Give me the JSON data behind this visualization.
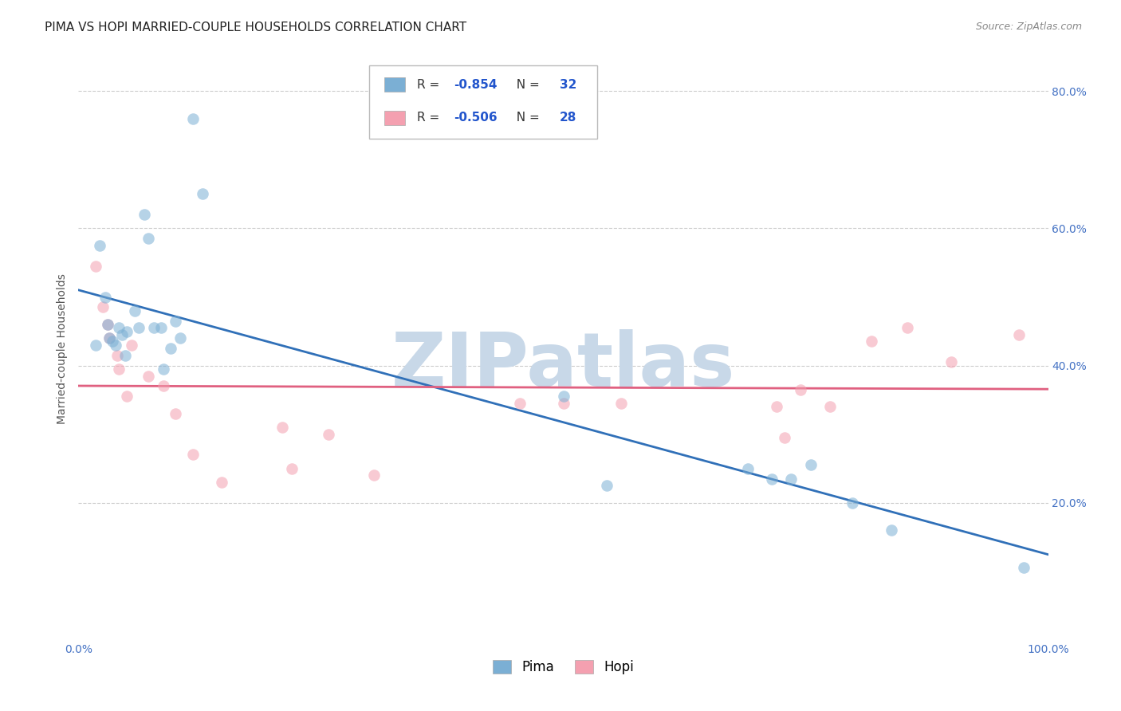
{
  "title": "PIMA VS HOPI MARRIED-COUPLE HOUSEHOLDS CORRELATION CHART",
  "source": "Source: ZipAtlas.com",
  "ylabel": "Married-couple Households",
  "xlim": [
    0.0,
    1.0
  ],
  "ylim": [
    0.0,
    0.85
  ],
  "yticks": [
    0.0,
    0.2,
    0.4,
    0.6,
    0.8
  ],
  "ytick_labels": [
    "",
    "20.0%",
    "40.0%",
    "60.0%",
    "80.0%"
  ],
  "xticks": [
    0.0,
    0.2,
    0.4,
    0.6,
    0.8,
    1.0
  ],
  "xtick_labels": [
    "0.0%",
    "",
    "",
    "",
    "",
    "100.0%"
  ],
  "pima_x": [
    0.018,
    0.022,
    0.028,
    0.03,
    0.032,
    0.035,
    0.038,
    0.042,
    0.045,
    0.048,
    0.05,
    0.058,
    0.062,
    0.068,
    0.072,
    0.078,
    0.085,
    0.088,
    0.095,
    0.1,
    0.105,
    0.118,
    0.128,
    0.5,
    0.545,
    0.69,
    0.715,
    0.735,
    0.755,
    0.798,
    0.838,
    0.975
  ],
  "pima_y": [
    0.43,
    0.575,
    0.5,
    0.46,
    0.44,
    0.435,
    0.43,
    0.455,
    0.445,
    0.415,
    0.45,
    0.48,
    0.455,
    0.62,
    0.585,
    0.455,
    0.455,
    0.395,
    0.425,
    0.465,
    0.44,
    0.76,
    0.65,
    0.355,
    0.225,
    0.25,
    0.235,
    0.235,
    0.255,
    0.2,
    0.16,
    0.105
  ],
  "hopi_x": [
    0.018,
    0.025,
    0.03,
    0.032,
    0.04,
    0.042,
    0.05,
    0.055,
    0.072,
    0.088,
    0.1,
    0.118,
    0.148,
    0.21,
    0.22,
    0.258,
    0.305,
    0.455,
    0.5,
    0.56,
    0.72,
    0.728,
    0.745,
    0.775,
    0.818,
    0.855,
    0.9,
    0.97
  ],
  "hopi_y": [
    0.545,
    0.485,
    0.46,
    0.44,
    0.415,
    0.395,
    0.355,
    0.43,
    0.385,
    0.37,
    0.33,
    0.27,
    0.23,
    0.31,
    0.25,
    0.3,
    0.24,
    0.345,
    0.345,
    0.345,
    0.34,
    0.295,
    0.365,
    0.34,
    0.435,
    0.455,
    0.405,
    0.445
  ],
  "pima_color": "#7bafd4",
  "hopi_color": "#f4a0b0",
  "pima_line_color": "#3070b8",
  "hopi_line_color": "#e06080",
  "watermark_text": "ZIPatlas",
  "watermark_color": "#c8d8e8",
  "grid_color": "#cccccc",
  "background_color": "#ffffff",
  "title_fontsize": 11,
  "axis_label_fontsize": 10,
  "tick_fontsize": 10,
  "marker_size": 110,
  "marker_alpha": 0.55,
  "line_width": 2.0,
  "leg_pima_r": "-0.854",
  "leg_pima_n": "32",
  "leg_hopi_r": "-0.506",
  "leg_hopi_n": "28",
  "legend_r_color": "#333333",
  "legend_n_color": "#2255cc",
  "legend_val_color": "#2255cc"
}
